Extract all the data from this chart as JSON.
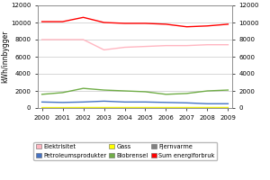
{
  "ylabel": "kWh/innbygger",
  "years": [
    2000,
    2001,
    2002,
    2003,
    2004,
    2005,
    2006,
    2007,
    2008,
    2009
  ],
  "series": {
    "Elektrisitet": {
      "values": [
        8000,
        8000,
        8000,
        6800,
        7100,
        7200,
        7300,
        7300,
        7400,
        7400
      ],
      "color": "#ffb6c1"
    },
    "Petroleumsprodukter": {
      "values": [
        700,
        650,
        700,
        800,
        700,
        700,
        650,
        600,
        500,
        500
      ],
      "color": "#4472c4"
    },
    "Gass": {
      "values": [
        50,
        50,
        60,
        60,
        60,
        60,
        60,
        60,
        60,
        60
      ],
      "color": "#ffff00"
    },
    "Biobrensel": {
      "values": [
        1600,
        1800,
        2300,
        2100,
        2000,
        1900,
        1600,
        1700,
        2000,
        2100
      ],
      "color": "#70ad47"
    },
    "Fjernvarme": {
      "values": [
        0,
        0,
        0,
        0,
        0,
        0,
        0,
        0,
        0,
        0
      ],
      "color": "#808080"
    },
    "Sum energiforbruk": {
      "values": [
        10100,
        10100,
        10600,
        10000,
        9900,
        9900,
        9800,
        9500,
        9600,
        9800
      ],
      "color": "#ff0000"
    }
  },
  "ylim": [
    0,
    12000
  ],
  "yticks": [
    0,
    2000,
    4000,
    6000,
    8000,
    10000,
    12000
  ],
  "bg_color": "#ffffff",
  "plot_bg_color": "#ffffff",
  "grid_color": "#c8c8c8",
  "legend_order_row1": [
    "Elektrisitet",
    "Petroleumsprodukter",
    "Gass"
  ],
  "legend_order_row2": [
    "Biobrensel",
    "Fjernvarme",
    "Sum energiforbruk"
  ]
}
